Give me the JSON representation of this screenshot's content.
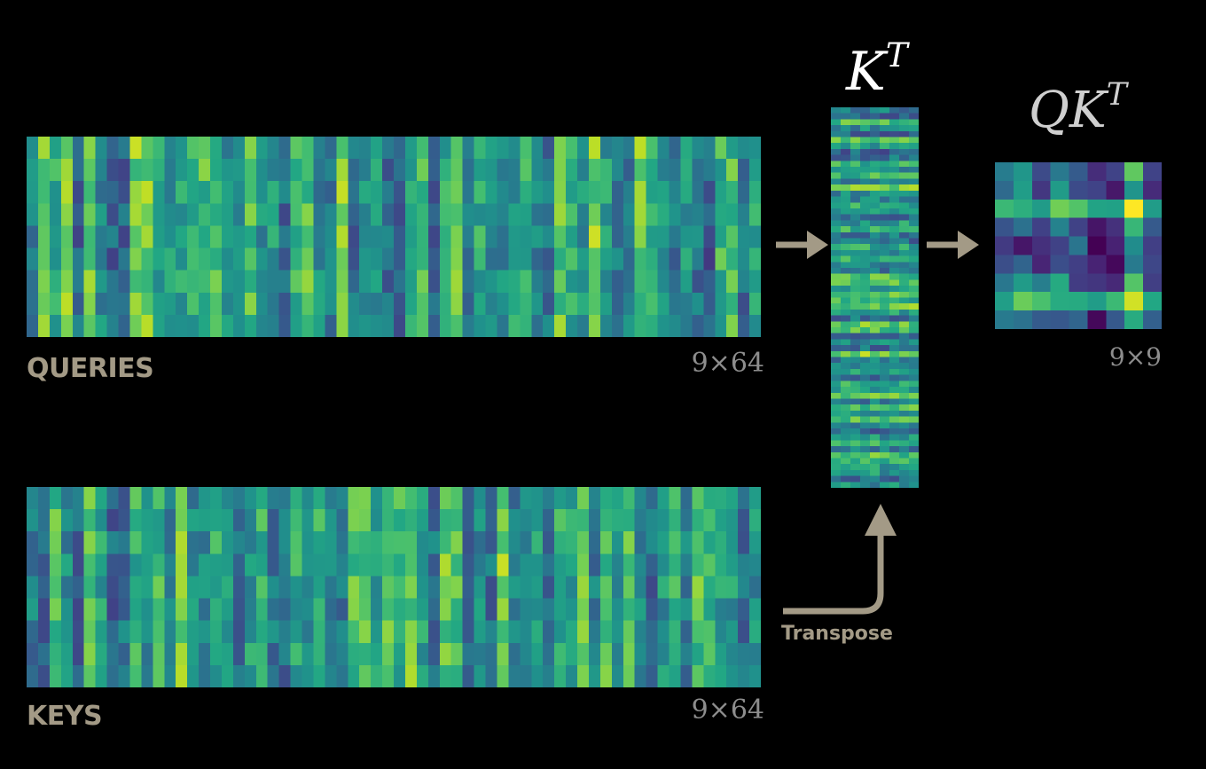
{
  "queries": {
    "label": "QUERIES",
    "dimension": "9×64",
    "rows": 9,
    "cols": 64
  },
  "keys": {
    "label": "KEYS",
    "dimension": "9×64",
    "rows": 9,
    "cols": 64
  },
  "kt": {
    "title_base": "K",
    "title_sup": "T",
    "rows": 64,
    "cols": 9
  },
  "qkt": {
    "title_base": "QK",
    "title_sup": "T",
    "dimension": "9×9",
    "rows": 9,
    "cols": 9
  },
  "transpose_label": "Transpose",
  "colors": {
    "background": "#000000",
    "arrow": "#a39a86",
    "colormap": "viridis"
  }
}
